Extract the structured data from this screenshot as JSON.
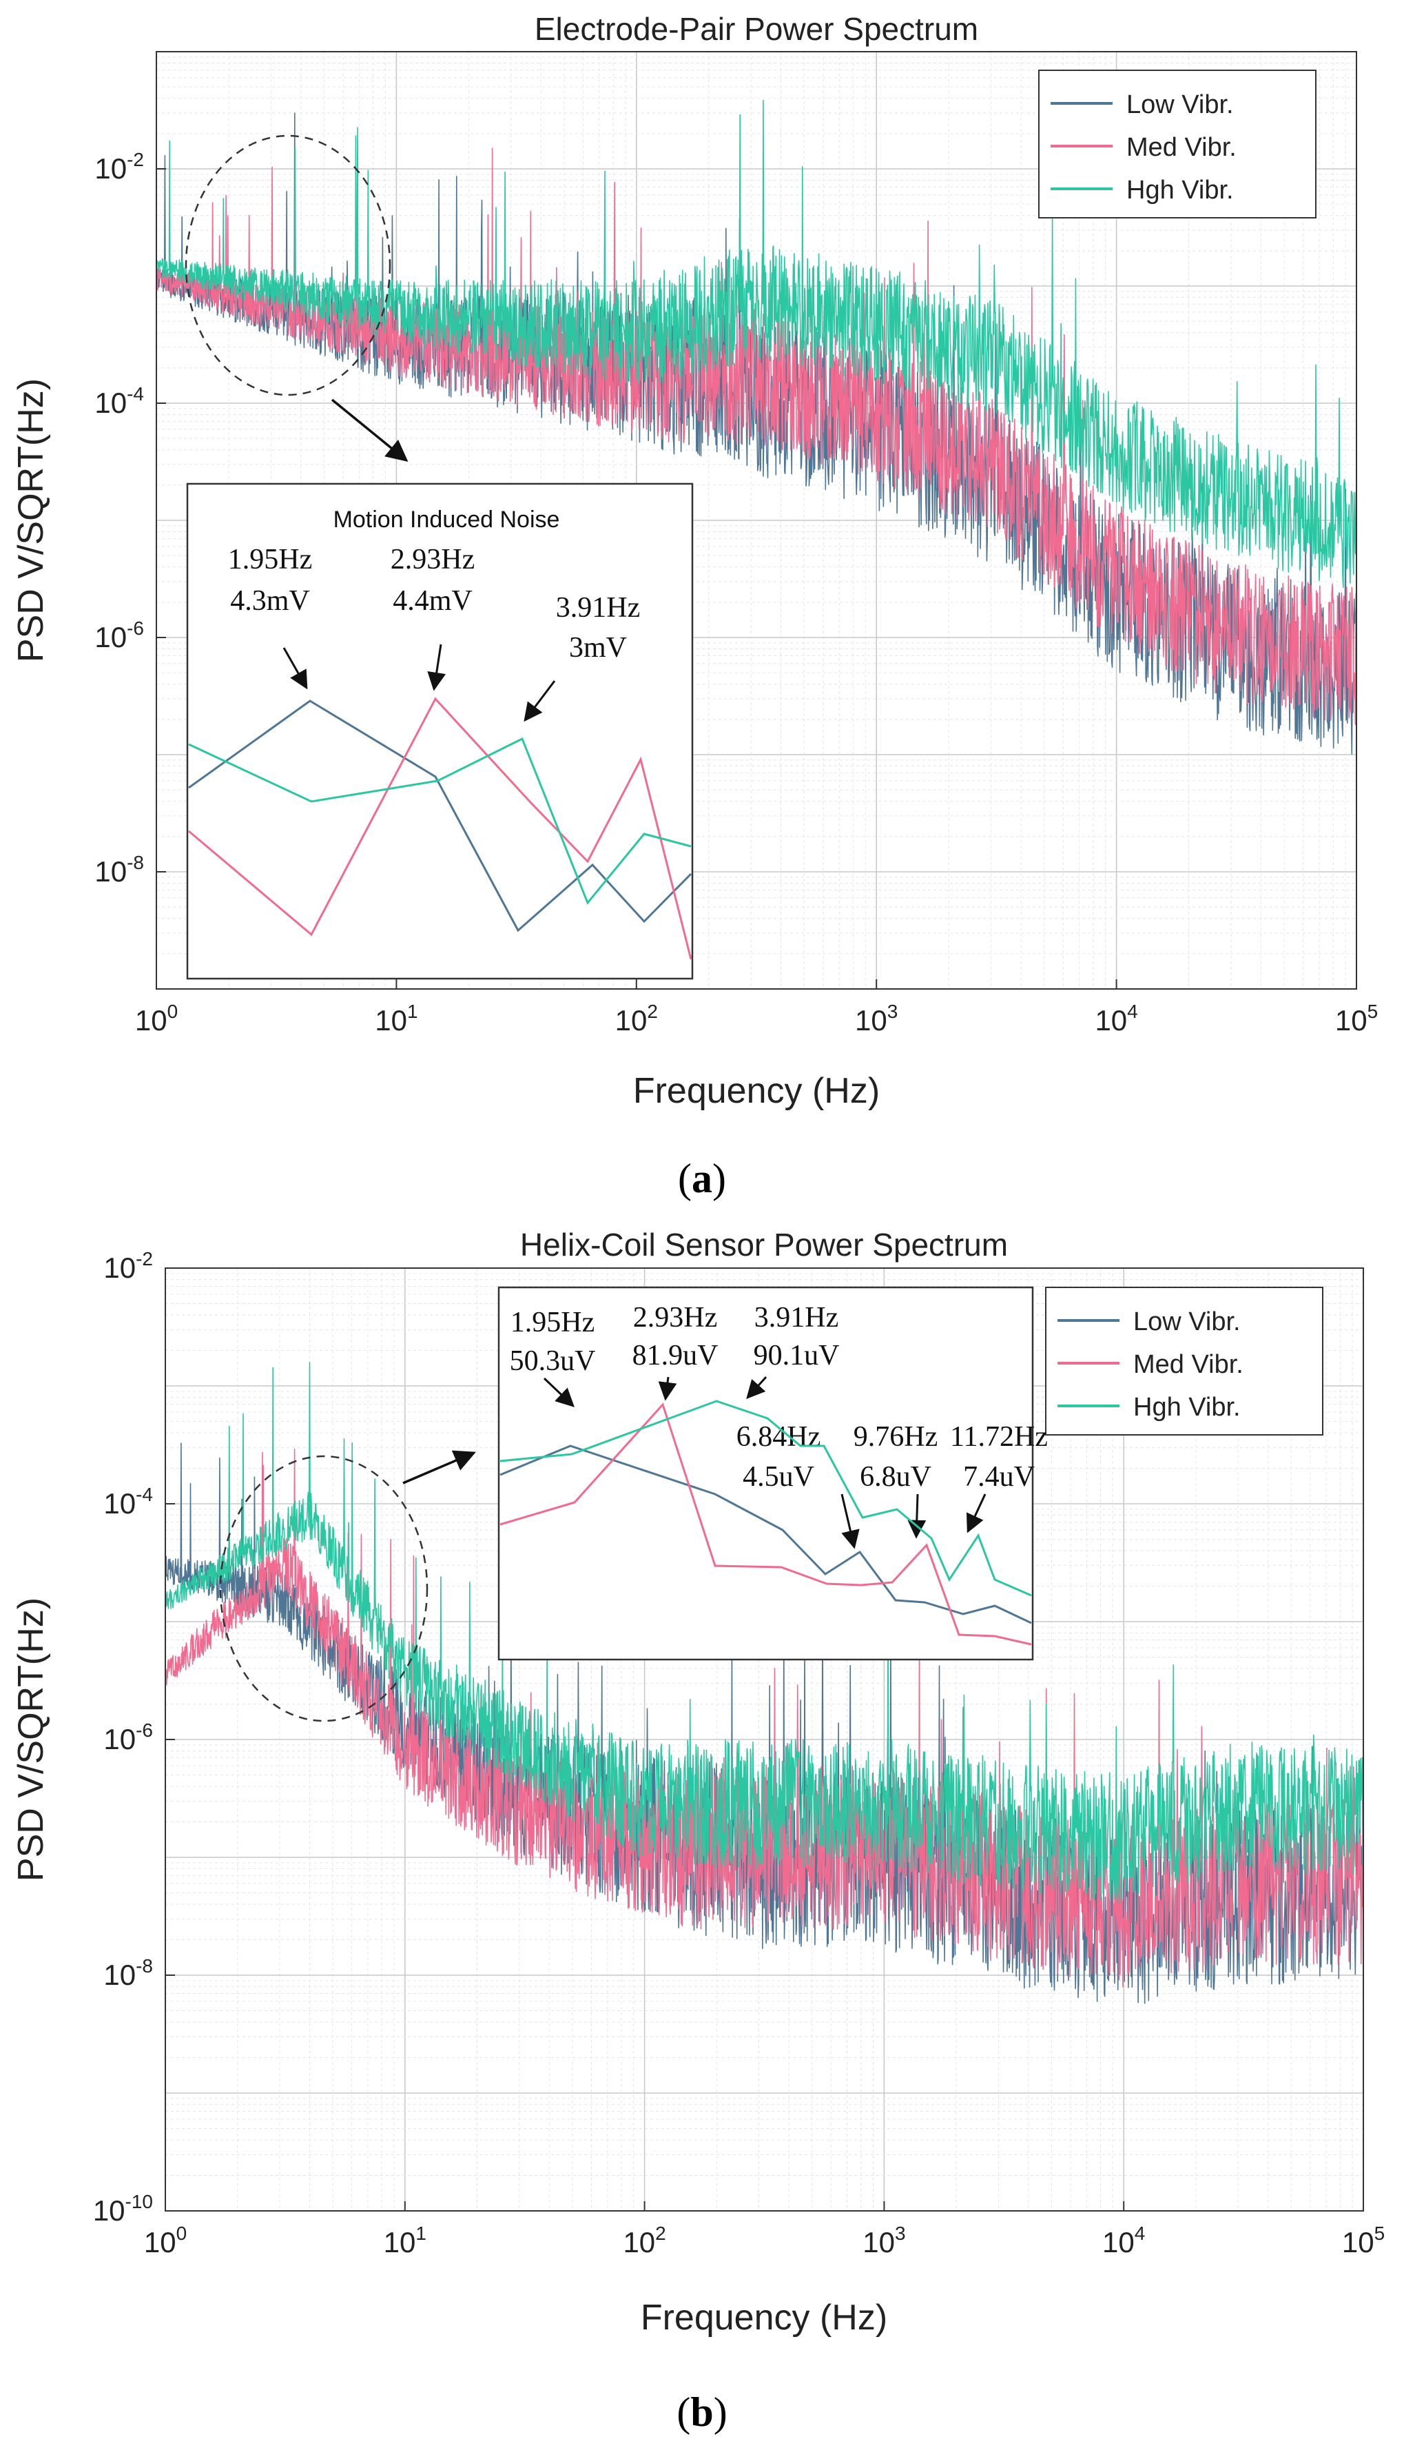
{
  "figure": {
    "panel_a_label": {
      "open": "(",
      "letter": "a",
      "close": ")"
    },
    "panel_b_label": {
      "open": "(",
      "letter": "b",
      "close": ")"
    }
  },
  "colors": {
    "low": "#4f7694",
    "med": "#f06b8f",
    "high": "#2bc7a2",
    "grid_major": "#c9c9c9",
    "grid_minor": "#e6e6e6"
  },
  "chart_data": [
    {
      "id": "a",
      "type": "line",
      "title": "Electrode-Pair Power Spectrum",
      "xlabel": "Frequency (Hz)",
      "ylabel": "PSD V/SQRT(Hz)",
      "xscale": "log",
      "yscale": "log",
      "xlim": [
        1,
        100000
      ],
      "ylim": [
        1e-09,
        0.1
      ],
      "x_ticks": [
        {
          "base": "10",
          "exp": "0"
        },
        {
          "base": "10",
          "exp": "1"
        },
        {
          "base": "10",
          "exp": "2"
        },
        {
          "base": "10",
          "exp": "3"
        },
        {
          "base": "10",
          "exp": "4"
        },
        {
          "base": "10",
          "exp": "5"
        }
      ],
      "y_ticks": [
        {
          "base": "10",
          "exp": "-8"
        },
        {
          "base": "10",
          "exp": "-6"
        },
        {
          "base": "10",
          "exp": "-4"
        },
        {
          "base": "10",
          "exp": "-2"
        }
      ],
      "legend": {
        "position": "top-right",
        "entries": [
          "Low Vibr.",
          "Med Vibr.",
          "Hgh Vibr."
        ]
      },
      "grid": true,
      "series": [
        {
          "name": "Low Vibr.",
          "trend_exp": [
            [
              0,
              -2.9
            ],
            [
              1,
              -3.3
            ],
            [
              2,
              -3.4
            ],
            [
              2.5,
              -3.6
            ],
            [
              3,
              -3.9
            ],
            [
              3.5,
              -4.4
            ],
            [
              4,
              -5.3
            ],
            [
              4.5,
              -5.8
            ],
            [
              5,
              -6.0
            ]
          ],
          "spread": 1.4
        },
        {
          "name": "Med Vibr.",
          "trend_exp": [
            [
              0,
              -2.9
            ],
            [
              1,
              -3.3
            ],
            [
              2,
              -3.5
            ],
            [
              2.5,
              -3.5
            ],
            [
              3,
              -3.8
            ],
            [
              3.5,
              -4.3
            ],
            [
              4,
              -5.2
            ],
            [
              4.5,
              -5.7
            ],
            [
              5,
              -5.9
            ]
          ],
          "spread": 1.2
        },
        {
          "name": "Hgh Vibr.",
          "trend_exp": [
            [
              0,
              -2.8
            ],
            [
              1,
              -3.1
            ],
            [
              2,
              -3.2
            ],
            [
              2.5,
              -2.9
            ],
            [
              3,
              -3.1
            ],
            [
              3.5,
              -3.4
            ],
            [
              4,
              -4.2
            ],
            [
              4.5,
              -4.6
            ],
            [
              5,
              -4.9
            ]
          ],
          "spread": 1.0
        }
      ],
      "inset": {
        "title": "Motion Induced Noise",
        "annotations": [
          {
            "freq": "1.95Hz",
            "value": "4.3mV"
          },
          {
            "freq": "2.93Hz",
            "value": "4.4mV"
          },
          {
            "freq": "3.91Hz",
            "value": "3mV"
          }
        ]
      }
    },
    {
      "id": "b",
      "type": "line",
      "title": "Helix-Coil Sensor Power Spectrum",
      "xlabel": "Frequency (Hz)",
      "ylabel": "PSD V/SQRT(Hz)",
      "xscale": "log",
      "yscale": "log",
      "xlim": [
        1,
        100000
      ],
      "ylim": [
        1e-10,
        0.01
      ],
      "x_ticks": [
        {
          "base": "10",
          "exp": "0"
        },
        {
          "base": "10",
          "exp": "1"
        },
        {
          "base": "10",
          "exp": "2"
        },
        {
          "base": "10",
          "exp": "3"
        },
        {
          "base": "10",
          "exp": "4"
        },
        {
          "base": "10",
          "exp": "5"
        }
      ],
      "y_ticks": [
        {
          "base": "10",
          "exp": "-10"
        },
        {
          "base": "10",
          "exp": "-8"
        },
        {
          "base": "10",
          "exp": "-6"
        },
        {
          "base": "10",
          "exp": "-4"
        },
        {
          "base": "10",
          "exp": "-2"
        }
      ],
      "legend": {
        "position": "top-right",
        "entries": [
          "Low Vibr.",
          "Med Vibr.",
          "Hgh Vibr."
        ]
      },
      "grid": true,
      "series": [
        {
          "name": "Low Vibr.",
          "trend_exp": [
            [
              0,
              -4.5
            ],
            [
              0.5,
              -4.7
            ],
            [
              1,
              -5.7
            ],
            [
              1.5,
              -6.2
            ],
            [
              2,
              -6.5
            ],
            [
              2.5,
              -6.7
            ],
            [
              3,
              -6.7
            ],
            [
              3.5,
              -7.0
            ],
            [
              4,
              -7.2
            ],
            [
              4.5,
              -7.0
            ],
            [
              5,
              -7.0
            ]
          ],
          "spread": 1.5
        },
        {
          "name": "Med Vibr.",
          "trend_exp": [
            [
              0,
              -5.4
            ],
            [
              0.5,
              -4.4
            ],
            [
              1,
              -5.9
            ],
            [
              1.5,
              -6.4
            ],
            [
              2,
              -6.6
            ],
            [
              2.5,
              -6.6
            ],
            [
              3,
              -6.6
            ],
            [
              3.5,
              -6.9
            ],
            [
              4,
              -7.1
            ],
            [
              4.5,
              -6.9
            ],
            [
              5,
              -6.9
            ]
          ],
          "spread": 1.4
        },
        {
          "name": "Hgh Vibr.",
          "trend_exp": [
            [
              0,
              -4.8
            ],
            [
              0.6,
              -4.0
            ],
            [
              1,
              -5.3
            ],
            [
              1.5,
              -5.9
            ],
            [
              2,
              -6.3
            ],
            [
              2.5,
              -6.3
            ],
            [
              3,
              -6.3
            ],
            [
              3.5,
              -6.5
            ],
            [
              4,
              -6.6
            ],
            [
              4.5,
              -6.3
            ],
            [
              5,
              -6.4
            ]
          ],
          "spread": 1.1
        }
      ],
      "inset": {
        "annotations": [
          {
            "freq": "1.95Hz",
            "value": "50.3uV"
          },
          {
            "freq": "2.93Hz",
            "value": "81.9uV"
          },
          {
            "freq": "3.91Hz",
            "value": "90.1uV"
          },
          {
            "freq": "6.84Hz",
            "value": "4.5uV"
          },
          {
            "freq": "9.76Hz",
            "value": "6.8uV"
          },
          {
            "freq": "11.72Hz",
            "value": "7.4uV"
          }
        ]
      }
    }
  ]
}
